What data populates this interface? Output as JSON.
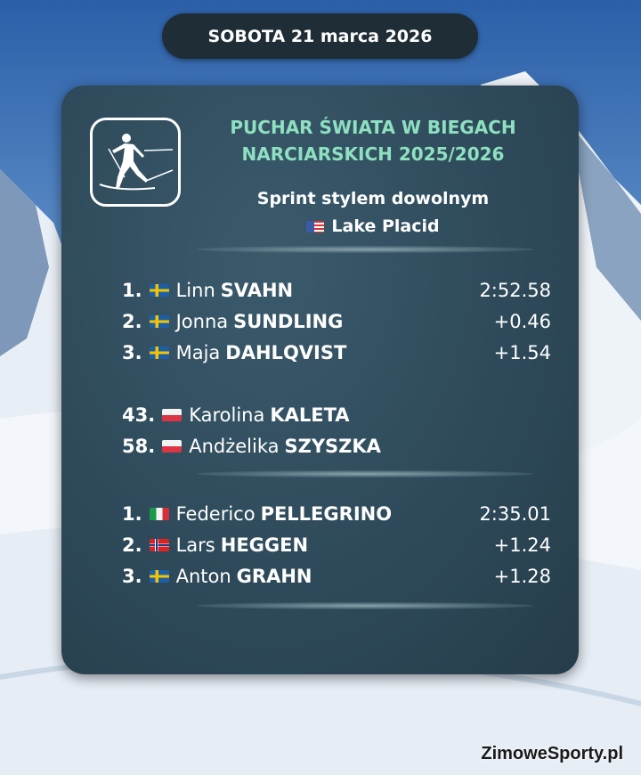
{
  "date": "SOBOTA 21 marca 2026",
  "header": {
    "title_line1": "PUCHAR ŚWIATA W BIEGACH",
    "title_line2": "NARCIARSKICH 2025/2026",
    "event": "Sprint stylem dowolnym",
    "venue": "Lake Placid",
    "venue_flag": "us-flag-icon",
    "logo_icon": "cross-country-skier-icon"
  },
  "women": [
    {
      "pos": "1.",
      "flag": "se",
      "first": "Linn",
      "last": "SVAHN",
      "time": "2:52.58"
    },
    {
      "pos": "2.",
      "flag": "se",
      "first": "Jonna",
      "last": "SUNDLING",
      "time": "+0.46"
    },
    {
      "pos": "3.",
      "flag": "se",
      "first": "Maja",
      "last": "DAHLQVIST",
      "time": "+1.54"
    }
  ],
  "polish": [
    {
      "pos": "43.",
      "flag": "pl",
      "first": "Karolina",
      "last": "KALETA",
      "time": ""
    },
    {
      "pos": "58.",
      "flag": "pl",
      "first": "Andżelika",
      "last": "SZYSZKA",
      "time": ""
    }
  ],
  "men": [
    {
      "pos": "1.",
      "flag": "it",
      "first": "Federico",
      "last": "PELLEGRINO",
      "time": "2:35.01"
    },
    {
      "pos": "2.",
      "flag": "no",
      "first": "Lars",
      "last": "HEGGEN",
      "time": "+1.24"
    },
    {
      "pos": "3.",
      "flag": "se",
      "first": "Anton",
      "last": "GRAHN",
      "time": "+1.28"
    }
  ],
  "brand": "ZimoweSporty.pl",
  "colors": {
    "title": "#8ee0c0",
    "card": "#2e4a5a",
    "pill": "#1f2e36"
  }
}
